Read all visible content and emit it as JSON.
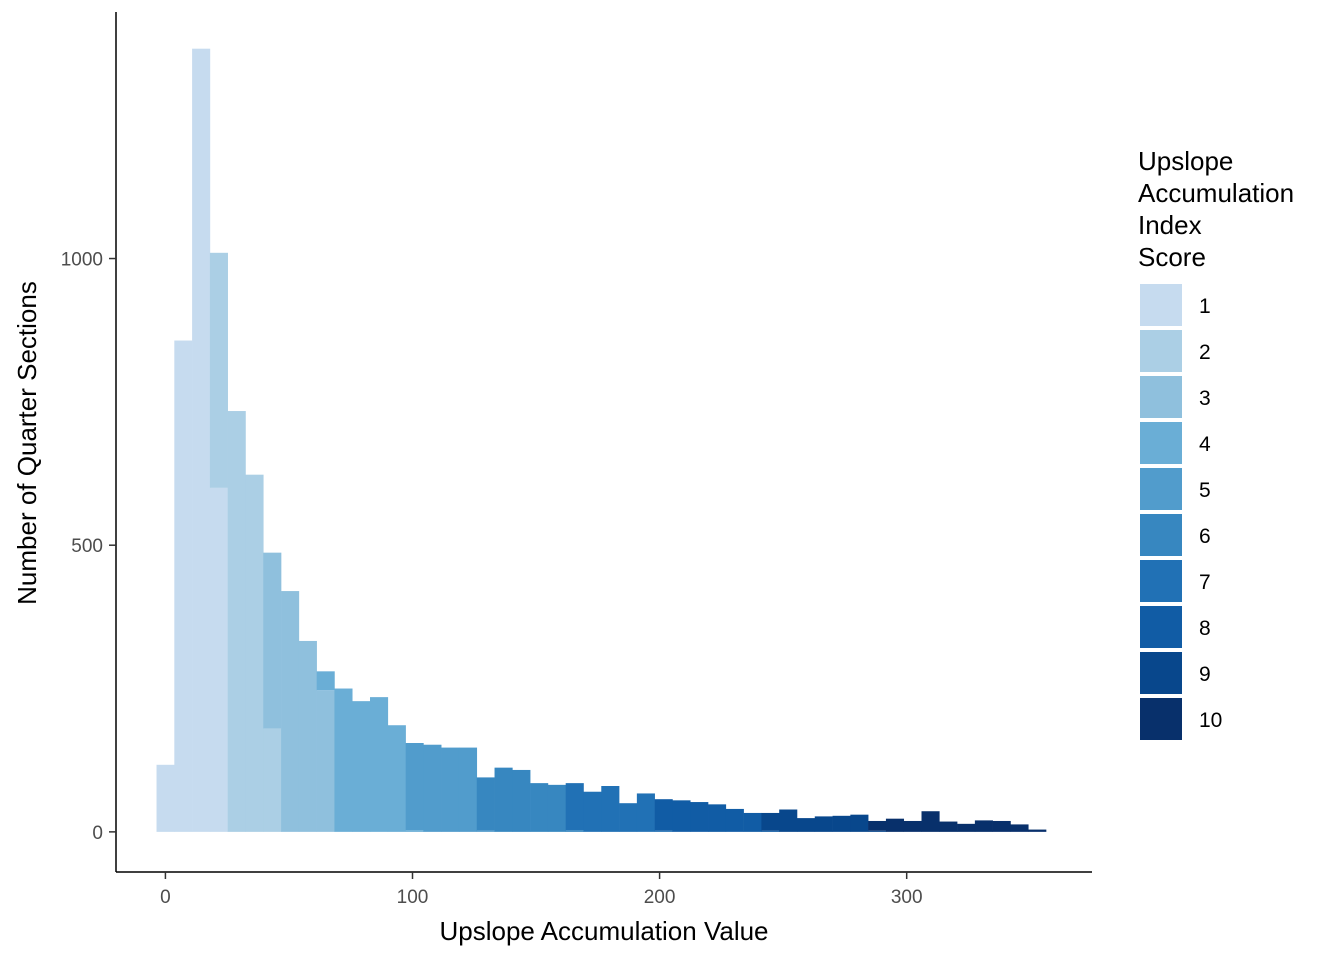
{
  "chart_data": {
    "type": "bar",
    "subtype": "stacked-histogram",
    "xlabel": "Upslope Accumulation Value",
    "ylabel": "Number of Quarter Sections",
    "xlim": [
      -20,
      375
    ],
    "ylim": [
      -70,
      1430
    ],
    "x_ticks": [
      0,
      100,
      200,
      300
    ],
    "y_ticks": [
      0,
      500,
      1000
    ],
    "grid": false,
    "legend": {
      "title_lines": [
        "Upslope",
        "Accumulation",
        "Index",
        "Score"
      ],
      "placement": "right",
      "items": [
        {
          "label": "1",
          "color": "#c6dbef"
        },
        {
          "label": "2",
          "color": "#abcfe5"
        },
        {
          "label": "3",
          "color": "#8fc0dd"
        },
        {
          "label": "4",
          "color": "#6aaed6"
        },
        {
          "label": "5",
          "color": "#519ccc"
        },
        {
          "label": "6",
          "color": "#3787c0"
        },
        {
          "label": "7",
          "color": "#2171b5"
        },
        {
          "label": "8",
          "color": "#115ca5"
        },
        {
          "label": "9",
          "color": "#08478c"
        },
        {
          "label": "10",
          "color": "#08306b"
        }
      ]
    },
    "bin_width": 7.2,
    "bins": [
      {
        "x0": -3.6,
        "segments": [
          {
            "score": 1,
            "count": 117
          }
        ]
      },
      {
        "x0": 3.6,
        "segments": [
          {
            "score": 1,
            "count": 857
          }
        ]
      },
      {
        "x0": 10.8,
        "segments": [
          {
            "score": 1,
            "count": 1366
          }
        ]
      },
      {
        "x0": 18.0,
        "segments": [
          {
            "score": 1,
            "count": 600
          },
          {
            "score": 2,
            "count": 410
          }
        ]
      },
      {
        "x0": 25.2,
        "segments": [
          {
            "score": 2,
            "count": 734
          }
        ]
      },
      {
        "x0": 32.4,
        "segments": [
          {
            "score": 2,
            "count": 623
          }
        ]
      },
      {
        "x0": 39.6,
        "segments": [
          {
            "score": 2,
            "count": 180
          },
          {
            "score": 3,
            "count": 307
          }
        ]
      },
      {
        "x0": 46.8,
        "segments": [
          {
            "score": 3,
            "count": 420
          }
        ]
      },
      {
        "x0": 54.0,
        "segments": [
          {
            "score": 3,
            "count": 333
          }
        ]
      },
      {
        "x0": 61.2,
        "segments": [
          {
            "score": 3,
            "count": 247
          },
          {
            "score": 4,
            "count": 33
          }
        ]
      },
      {
        "x0": 68.4,
        "segments": [
          {
            "score": 4,
            "count": 250
          }
        ]
      },
      {
        "x0": 75.6,
        "segments": [
          {
            "score": 4,
            "count": 228
          }
        ]
      },
      {
        "x0": 82.8,
        "segments": [
          {
            "score": 4,
            "count": 235
          }
        ]
      },
      {
        "x0": 90.0,
        "segments": [
          {
            "score": 4,
            "count": 186
          }
        ]
      },
      {
        "x0": 97.2,
        "segments": [
          {
            "score": 4,
            "count": 3
          },
          {
            "score": 5,
            "count": 152
          }
        ]
      },
      {
        "x0": 104.4,
        "segments": [
          {
            "score": 5,
            "count": 152
          }
        ]
      },
      {
        "x0": 111.6,
        "segments": [
          {
            "score": 5,
            "count": 147
          }
        ]
      },
      {
        "x0": 118.8,
        "segments": [
          {
            "score": 5,
            "count": 147
          }
        ]
      },
      {
        "x0": 126.0,
        "segments": [
          {
            "score": 5,
            "count": 2
          },
          {
            "score": 6,
            "count": 93
          }
        ]
      },
      {
        "x0": 133.2,
        "segments": [
          {
            "score": 6,
            "count": 112
          }
        ]
      },
      {
        "x0": 140.4,
        "segments": [
          {
            "score": 6,
            "count": 108
          }
        ]
      },
      {
        "x0": 147.6,
        "segments": [
          {
            "score": 6,
            "count": 85
          }
        ]
      },
      {
        "x0": 154.8,
        "segments": [
          {
            "score": 6,
            "count": 82
          }
        ]
      },
      {
        "x0": 162.0,
        "segments": [
          {
            "score": 6,
            "count": 3
          },
          {
            "score": 7,
            "count": 82
          }
        ]
      },
      {
        "x0": 169.2,
        "segments": [
          {
            "score": 7,
            "count": 70
          }
        ]
      },
      {
        "x0": 176.4,
        "segments": [
          {
            "score": 7,
            "count": 80
          }
        ]
      },
      {
        "x0": 183.6,
        "segments": [
          {
            "score": 7,
            "count": 50
          }
        ]
      },
      {
        "x0": 190.8,
        "segments": [
          {
            "score": 7,
            "count": 67
          }
        ]
      },
      {
        "x0": 198.0,
        "segments": [
          {
            "score": 7,
            "count": 2
          },
          {
            "score": 8,
            "count": 55
          }
        ]
      },
      {
        "x0": 205.2,
        "segments": [
          {
            "score": 8,
            "count": 55
          }
        ]
      },
      {
        "x0": 212.4,
        "segments": [
          {
            "score": 8,
            "count": 52
          }
        ]
      },
      {
        "x0": 219.6,
        "segments": [
          {
            "score": 8,
            "count": 48
          }
        ]
      },
      {
        "x0": 226.8,
        "segments": [
          {
            "score": 8,
            "count": 40
          }
        ]
      },
      {
        "x0": 234.0,
        "segments": [
          {
            "score": 8,
            "count": 33
          }
        ]
      },
      {
        "x0": 241.2,
        "segments": [
          {
            "score": 8,
            "count": 2
          },
          {
            "score": 9,
            "count": 31
          }
        ]
      },
      {
        "x0": 248.4,
        "segments": [
          {
            "score": 9,
            "count": 39
          }
        ]
      },
      {
        "x0": 255.6,
        "segments": [
          {
            "score": 9,
            "count": 24
          }
        ]
      },
      {
        "x0": 262.8,
        "segments": [
          {
            "score": 9,
            "count": 27
          }
        ]
      },
      {
        "x0": 270.0,
        "segments": [
          {
            "score": 9,
            "count": 28
          }
        ]
      },
      {
        "x0": 277.2,
        "segments": [
          {
            "score": 9,
            "count": 30
          }
        ]
      },
      {
        "x0": 284.4,
        "segments": [
          {
            "score": 9,
            "count": 2
          },
          {
            "score": 10,
            "count": 17
          }
        ]
      },
      {
        "x0": 291.6,
        "segments": [
          {
            "score": 10,
            "count": 23
          }
        ]
      },
      {
        "x0": 298.8,
        "segments": [
          {
            "score": 10,
            "count": 19
          }
        ]
      },
      {
        "x0": 306.0,
        "segments": [
          {
            "score": 10,
            "count": 36
          }
        ]
      },
      {
        "x0": 313.2,
        "segments": [
          {
            "score": 10,
            "count": 18
          }
        ]
      },
      {
        "x0": 320.4,
        "segments": [
          {
            "score": 10,
            "count": 14
          }
        ]
      },
      {
        "x0": 327.6,
        "segments": [
          {
            "score": 10,
            "count": 20
          }
        ]
      },
      {
        "x0": 334.8,
        "segments": [
          {
            "score": 10,
            "count": 19
          }
        ]
      },
      {
        "x0": 342.0,
        "segments": [
          {
            "score": 10,
            "count": 13
          }
        ]
      },
      {
        "x0": 349.2,
        "segments": [
          {
            "score": 10,
            "count": 4
          }
        ]
      }
    ]
  }
}
